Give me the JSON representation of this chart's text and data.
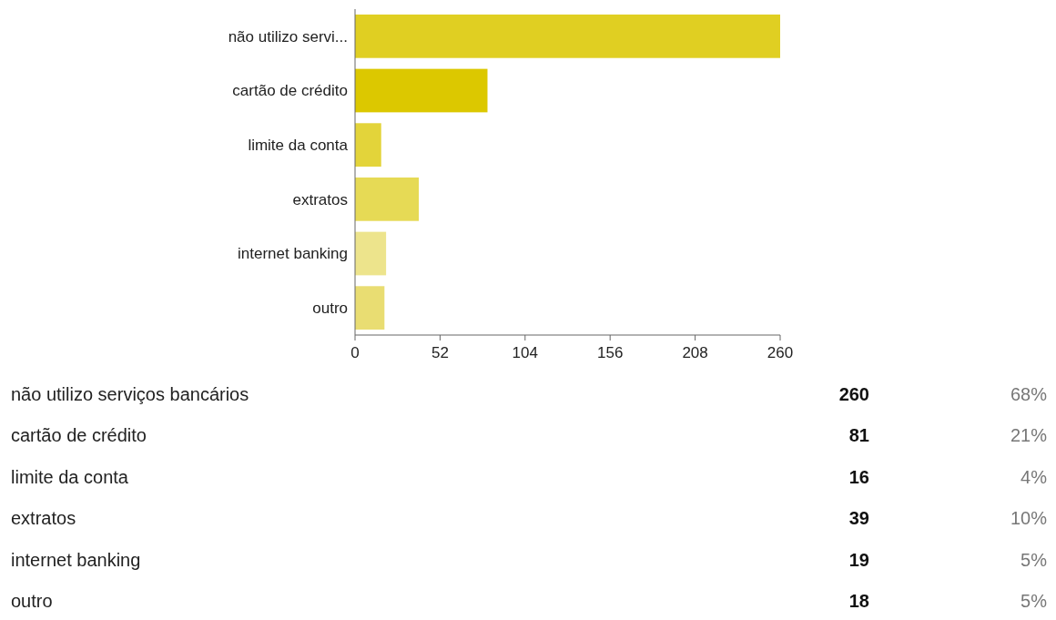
{
  "chart_data": [
    {
      "type": "bar",
      "orientation": "horizontal",
      "categories": [
        "não utilizo servi...",
        "cartão de crédito",
        "limite da conta",
        "extratos",
        "internet banking",
        "outro"
      ],
      "values": [
        260,
        81,
        16,
        39,
        19,
        18
      ],
      "colors": [
        "#e0cf22",
        "#dcc800",
        "#e3d43a",
        "#e6da55",
        "#ede48c",
        "#e9dd72"
      ],
      "xlim": [
        0,
        260
      ],
      "xticks": [
        0,
        52,
        104,
        156,
        208,
        260
      ]
    },
    {
      "type": "other",
      "annotations": [
        "não utilizo serviços bancários",
        "260",
        "68%",
        "cartão de crédito",
        "81",
        "21%",
        "limite da conta",
        "16",
        "4%",
        "extratos",
        "39",
        "10%",
        "internet banking",
        "19",
        "5%",
        "outro",
        "18",
        "5%"
      ]
    }
  ]
}
